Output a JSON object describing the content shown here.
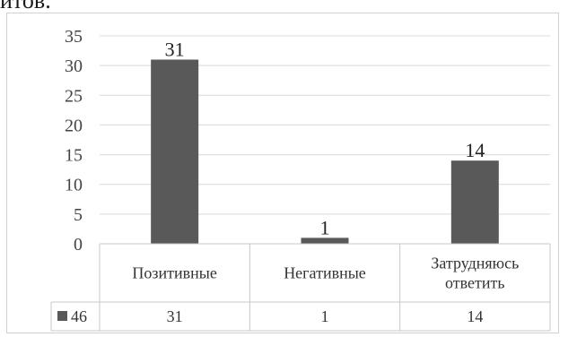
{
  "header_fragment": "итов.",
  "chart_data": {
    "type": "bar",
    "categories": [
      "Позитивные",
      "Негативные",
      "Затрудняюсь ответить"
    ],
    "category_lines": [
      [
        "Позитивные"
      ],
      [
        "Негативные"
      ],
      [
        "Затрудняюсь",
        "ответить"
      ]
    ],
    "series": [
      {
        "name": "46",
        "values": [
          31,
          1,
          14
        ],
        "color": "#595959"
      }
    ],
    "ylim": [
      0,
      35
    ],
    "yticks": [
      0,
      5,
      10,
      15,
      20,
      25,
      30,
      35
    ],
    "data_labels": true,
    "data_table": true,
    "grid": true,
    "legend": "data-table"
  }
}
